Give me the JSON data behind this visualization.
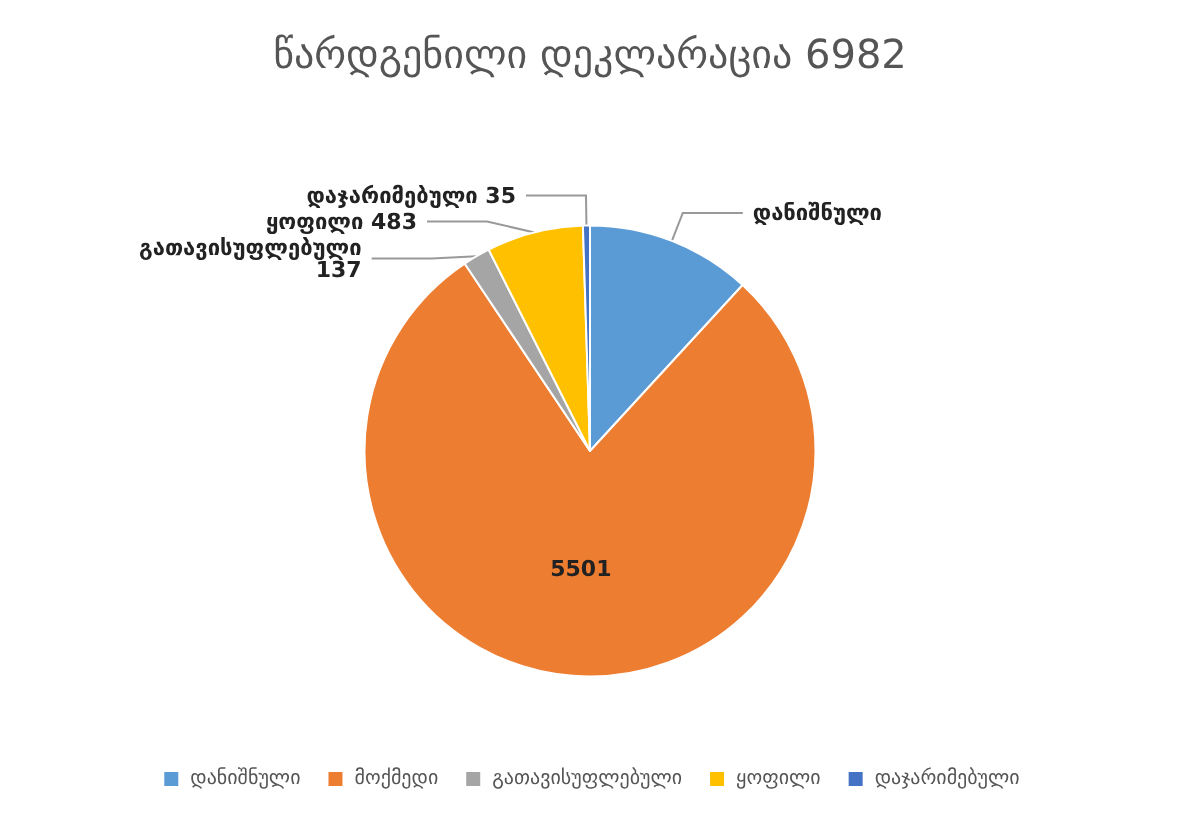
{
  "chart_data": {
    "type": "pie",
    "title": "წარდგენილი დეკლარაცია 6982",
    "categories": [
      "დანიშნული",
      "მოქმედი",
      "გათავისუფლებული",
      "ყოფილი",
      "დაჯარიმებული"
    ],
    "values": [
      826,
      5501,
      137,
      483,
      35
    ],
    "colors": [
      "#5b9bd5",
      "#ed7d31",
      "#a5a5a5",
      "#ffc000",
      "#4472c4"
    ],
    "value_labels": [
      "დანიშნული",
      "5501",
      "გათავისუფლებული\n137",
      "ყოფილი 483",
      "დაჯარიმებული 35"
    ],
    "legend": "bottom"
  }
}
